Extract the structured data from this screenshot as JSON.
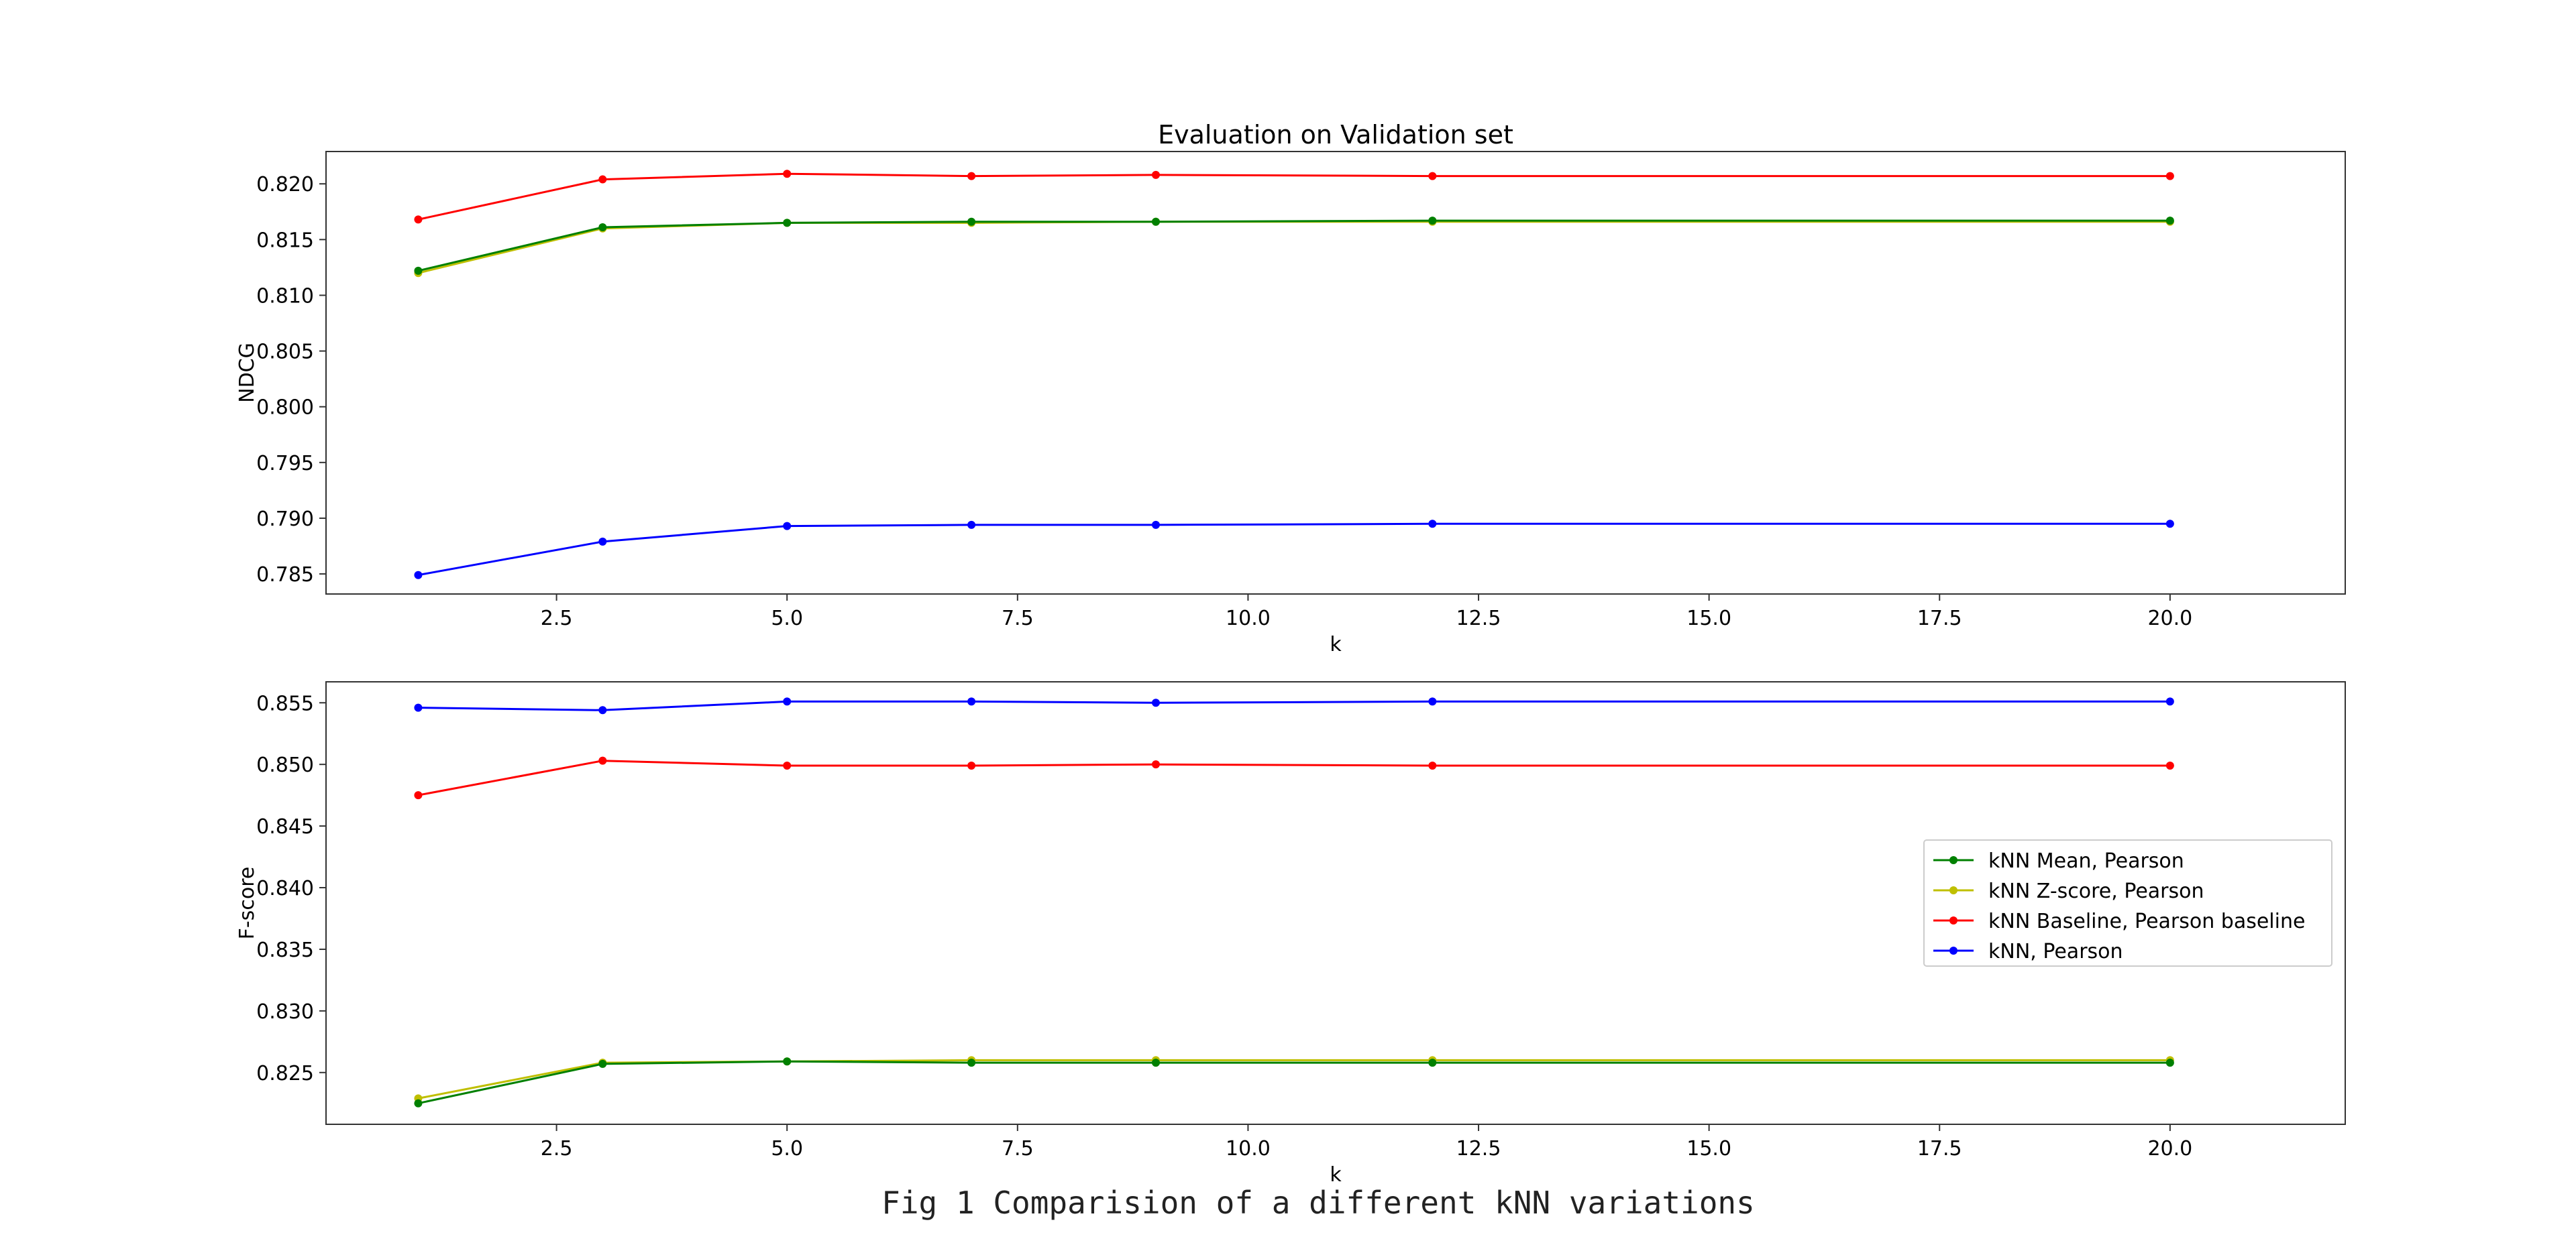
{
  "caption": "Fig 1 Comparision of a different kNN variations",
  "colors": {
    "kNN Mean, Pearson": "#008000",
    "kNN Z-score, Pearson": "#bfbf00",
    "kNN Baseline, Pearson baseline": "#ff0000",
    "kNN, Pearson": "#0000ff"
  },
  "legend": {
    "placement": "center-right of bottom panel",
    "entries": [
      "kNN Mean, Pearson",
      "kNN Z-score, Pearson",
      "kNN Baseline, Pearson baseline",
      "kNN, Pearson"
    ]
  },
  "chart_data": [
    {
      "type": "line",
      "title": "Evaluation on Validation set",
      "xlabel": "k",
      "ylabel": "NDCG",
      "xlim": [
        -0.0,
        21.9
      ],
      "ylim": [
        0.7832,
        0.8229
      ],
      "xticks": [
        "2.5",
        "5.0",
        "7.5",
        "10.0",
        "12.5",
        "15.0",
        "17.5",
        "20.0"
      ],
      "yticks": [
        "0.785",
        "0.790",
        "0.795",
        "0.800",
        "0.805",
        "0.810",
        "0.815",
        "0.820"
      ],
      "grid": false,
      "x": [
        1,
        3,
        5,
        7,
        9,
        12,
        20
      ],
      "series": [
        {
          "name": "kNN Baseline, Pearson baseline",
          "values": [
            0.8168,
            0.8204,
            0.8209,
            0.8207,
            0.8208,
            0.8207,
            0.8207
          ]
        },
        {
          "name": "kNN Z-score, Pearson",
          "values": [
            0.812,
            0.816,
            0.8165,
            0.8165,
            0.8166,
            0.8166,
            0.8166
          ]
        },
        {
          "name": "kNN Mean, Pearson",
          "values": [
            0.8122,
            0.8161,
            0.8165,
            0.8166,
            0.8166,
            0.8167,
            0.8167
          ]
        },
        {
          "name": "kNN, Pearson",
          "values": [
            0.7849,
            0.7879,
            0.7893,
            0.7894,
            0.7894,
            0.7895,
            0.7895
          ]
        }
      ]
    },
    {
      "type": "line",
      "title": "",
      "xlabel": "k",
      "ylabel": "F-score",
      "xlim": [
        -0.0,
        21.9
      ],
      "ylim": [
        0.8208,
        0.8567
      ],
      "xticks": [
        "2.5",
        "5.0",
        "7.5",
        "10.0",
        "12.5",
        "15.0",
        "17.5",
        "20.0"
      ],
      "yticks": [
        "0.825",
        "0.830",
        "0.835",
        "0.840",
        "0.845",
        "0.850",
        "0.855"
      ],
      "grid": false,
      "x": [
        1,
        3,
        5,
        7,
        9,
        12,
        20
      ],
      "series": [
        {
          "name": "kNN, Pearson",
          "values": [
            0.8546,
            0.8544,
            0.8551,
            0.8551,
            0.855,
            0.8551,
            0.8551
          ]
        },
        {
          "name": "kNN Baseline, Pearson baseline",
          "values": [
            0.8475,
            0.8503,
            0.8499,
            0.8499,
            0.85,
            0.8499,
            0.8499
          ]
        },
        {
          "name": "kNN Z-score, Pearson",
          "values": [
            0.8229,
            0.8258,
            0.8259,
            0.826,
            0.826,
            0.826,
            0.826
          ]
        },
        {
          "name": "kNN Mean, Pearson",
          "values": [
            0.8225,
            0.8257,
            0.8259,
            0.8258,
            0.8258,
            0.8258,
            0.8258
          ]
        }
      ]
    }
  ]
}
